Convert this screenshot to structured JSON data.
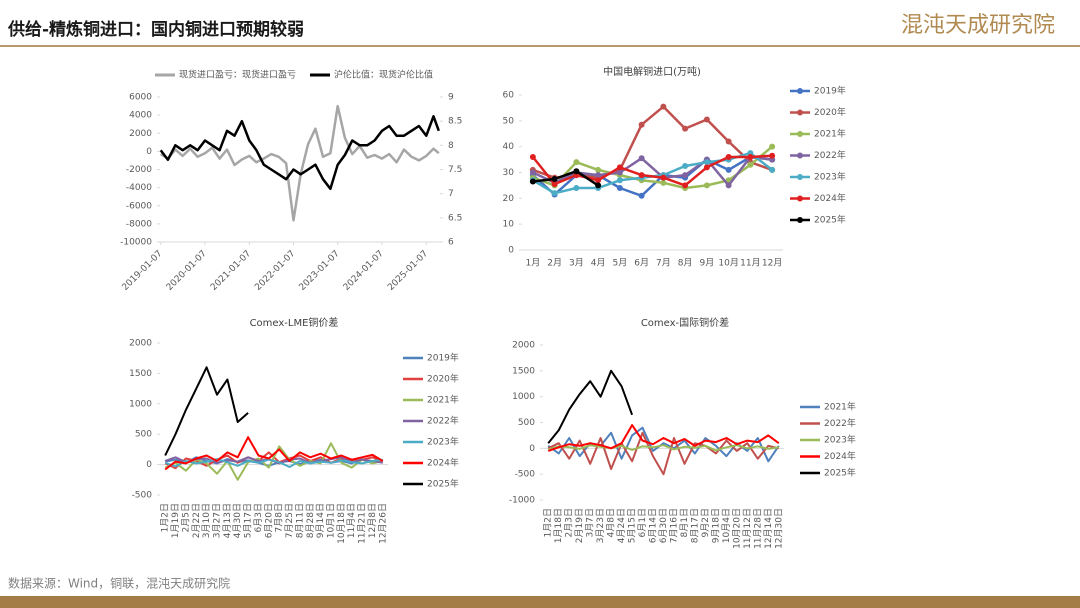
{
  "header": {
    "title": "供给-精炼铜进口：国内铜进口预期较弱",
    "logo": "混沌天成研究院"
  },
  "footer": {
    "source": "数据来源：Wind，铜联，混沌天成研究院"
  },
  "chart_data": [
    {
      "type": "line",
      "x": [
        "2019-01-07",
        "2019-03-07",
        "2019-05-07",
        "2019-07-07",
        "2019-09-07",
        "2019-11-07",
        "2020-01-07",
        "2020-03-07",
        "2020-05-07",
        "2020-07-07",
        "2020-09-07",
        "2020-11-07",
        "2021-01-07",
        "2021-03-07",
        "2021-05-07",
        "2021-07-07",
        "2021-09-07",
        "2021-11-07",
        "2022-01-07",
        "2022-03-07",
        "2022-05-07",
        "2022-07-07",
        "2022-09-07",
        "2022-11-07",
        "2023-01-07",
        "2023-03-07",
        "2023-05-07",
        "2023-07-07",
        "2023-09-07",
        "2023-11-07",
        "2024-01-07",
        "2024-03-07",
        "2024-05-07",
        "2024-07-07",
        "2024-09-07",
        "2024-11-07",
        "2025-01-07",
        "2025-03-07",
        "2025-04-20"
      ],
      "xlim": [
        "2019-01-01",
        "2025-04-30"
      ],
      "xticks": [
        "2019-01-07",
        "2020-01-07",
        "2021-01-07",
        "2022-01-07",
        "2023-01-07",
        "2024-01-07",
        "2025-01-07"
      ],
      "ylim": [
        -10000,
        6000
      ],
      "yticks": [
        6000,
        4000,
        2000,
        0,
        -2000,
        -4000,
        -6000,
        -8000,
        -10000
      ],
      "y2lim": [
        6,
        9
      ],
      "y2ticks": [
        9,
        8.5,
        8,
        7.5,
        7,
        6.5,
        6
      ],
      "series": [
        {
          "name": "现货进口盈亏：现货进口盈亏",
          "color": "#a6a6a6",
          "values": [
            -300,
            -800,
            200,
            -500,
            300,
            -600,
            -200,
            400,
            -800,
            200,
            -1500,
            -900,
            -500,
            -1200,
            -800,
            -300,
            -600,
            -1300,
            -7600,
            -2500,
            800,
            2500,
            -600,
            -200,
            5000,
            1500,
            -300,
            600,
            -700,
            -400,
            -800,
            -300,
            -1200,
            200,
            -600,
            -1000,
            -500,
            300,
            -200
          ]
        },
        {
          "name": "沪伦比值：现货沪伦比值",
          "color": "#000000",
          "axis": "y2",
          "values": [
            7.9,
            7.7,
            8.0,
            7.9,
            8.0,
            7.9,
            8.1,
            8.0,
            7.9,
            8.3,
            8.2,
            8.5,
            8.1,
            7.9,
            7.6,
            7.5,
            7.4,
            7.3,
            7.5,
            7.4,
            7.5,
            7.6,
            7.3,
            7.1,
            7.6,
            7.8,
            8.1,
            8.0,
            8.0,
            8.1,
            8.3,
            8.4,
            8.2,
            8.2,
            8.3,
            8.4,
            8.2,
            8.6,
            8.3
          ]
        }
      ]
    },
    {
      "type": "line",
      "title": "中国电解铜进口(万吨)",
      "categories": [
        "1月",
        "2月",
        "3月",
        "4月",
        "5月",
        "6月",
        "7月",
        "8月",
        "9月",
        "10月",
        "11月",
        "12月"
      ],
      "ylim": [
        0,
        60
      ],
      "yticks": [
        0,
        10,
        20,
        30,
        40,
        50,
        60
      ],
      "markers": true,
      "series": [
        {
          "name": "2019年",
          "color": "#4472c4",
          "values": [
            29,
            21.5,
            29,
            29,
            24,
            21,
            29,
            28,
            35,
            31,
            36,
            35
          ]
        },
        {
          "name": "2020年",
          "color": "#c0504d",
          "values": [
            31,
            28,
            29,
            28,
            31,
            48.5,
            55.5,
            47,
            50.5,
            42,
            34,
            31
          ]
        },
        {
          "name": "2021年",
          "color": "#9bbb59",
          "values": [
            28,
            25,
            34,
            31,
            29,
            27,
            26,
            24,
            25,
            27,
            33,
            40
          ]
        },
        {
          "name": "2022年",
          "color": "#8064a2",
          "values": [
            30,
            26,
            30,
            29,
            30,
            35.5,
            28,
            29,
            35,
            25,
            36,
            35
          ]
        },
        {
          "name": "2023年",
          "color": "#4bacc6",
          "values": [
            27,
            22,
            24,
            24,
            27,
            28,
            29,
            32.5,
            34,
            35,
            37.5,
            31
          ]
        },
        {
          "name": "2024年",
          "color": "#e02020",
          "values": [
            36,
            25.5,
            29,
            27,
            32,
            29,
            28,
            25,
            32,
            36,
            36,
            36.5
          ]
        },
        {
          "name": "2025年",
          "color": "#000000",
          "values": [
            26.5,
            27.5,
            30.5,
            25,
            null,
            null,
            null,
            null,
            null,
            null,
            null,
            null
          ]
        }
      ]
    },
    {
      "type": "line",
      "title": "Comex-LME铜价差",
      "categories": [
        "1月2日",
        "1月19日",
        "2月5日",
        "2月22日",
        "3月10日",
        "3月27日",
        "4月13日",
        "4月30日",
        "5月17日",
        "6月3日",
        "6月20日",
        "7月8日",
        "7月25日",
        "8月11日",
        "8月28日",
        "9月14日",
        "10月1日",
        "10月18日",
        "11月4日",
        "11月21日",
        "12月8日",
        "12月26日"
      ],
      "ylim": [
        -500,
        2000
      ],
      "yticks": [
        -500,
        0,
        500,
        1000,
        1500,
        2000
      ],
      "series": [
        {
          "name": "2019年",
          "color": "#4f81bd",
          "values": [
            50,
            80,
            30,
            120,
            60,
            20,
            90,
            40,
            70,
            30,
            -20,
            40,
            60,
            10,
            50,
            80,
            30,
            60,
            20,
            90,
            40,
            70
          ]
        },
        {
          "name": "2020年",
          "color": "#e04040",
          "values": [
            20,
            -60,
            100,
            60,
            -20,
            80,
            150,
            30,
            120,
            60,
            200,
            40,
            100,
            150,
            60,
            120,
            30,
            100,
            60,
            80,
            120,
            50
          ]
        },
        {
          "name": "2021年",
          "color": "#9bbb59",
          "values": [
            -50,
            30,
            -100,
            80,
            20,
            -150,
            60,
            -250,
            40,
            100,
            -50,
            300,
            80,
            -20,
            60,
            20,
            350,
            30,
            -50,
            80,
            20,
            60
          ]
        },
        {
          "name": "2022年",
          "color": "#8064a2",
          "values": [
            60,
            120,
            40,
            90,
            100,
            30,
            70,
            50,
            120,
            60,
            90,
            20,
            80,
            100,
            30,
            60,
            90,
            120,
            40,
            80,
            60,
            30
          ]
        },
        {
          "name": "2023年",
          "color": "#4bacc6",
          "values": [
            30,
            -30,
            60,
            20,
            50,
            90,
            40,
            -20,
            60,
            30,
            80,
            40,
            -40,
            60,
            20,
            50,
            30,
            70,
            40,
            20,
            60,
            80
          ]
        },
        {
          "name": "2024年",
          "color": "#ff0000",
          "values": [
            -80,
            50,
            20,
            100,
            150,
            60,
            200,
            120,
            450,
            150,
            100,
            250,
            60,
            200,
            120,
            180,
            100,
            150,
            80,
            120,
            160,
            60
          ]
        },
        {
          "name": "2025年",
          "color": "#000000",
          "values": [
            150,
            500,
            900,
            1250,
            1600,
            1150,
            1400,
            700,
            850,
            null,
            null,
            null,
            null,
            null,
            null,
            null,
            null,
            null,
            null,
            null,
            null,
            null
          ]
        }
      ]
    },
    {
      "type": "line",
      "title": "Comex-国际铜价差",
      "categories": [
        "1月2日",
        "1月18日",
        "2月3日",
        "2月19日",
        "3月7日",
        "3月23日",
        "4月8日",
        "4月24日",
        "5月15日",
        "6月1日",
        "6月14日",
        "6月30日",
        "7月16日",
        "8月1日",
        "8月17日",
        "9月2日",
        "9月18日",
        "10月4日",
        "10月20日",
        "11月12日",
        "11月28日",
        "12月14日",
        "12月30日"
      ],
      "ylim": [
        -1000,
        2000
      ],
      "yticks": [
        -1000,
        -500,
        0,
        500,
        1000,
        1500,
        2000
      ],
      "series": [
        {
          "name": "2021年",
          "color": "#4f81bd",
          "values": [
            50,
            -100,
            200,
            -150,
            100,
            50,
            300,
            -200,
            250,
            400,
            -50,
            100,
            0,
            150,
            -100,
            200,
            50,
            -150,
            100,
            -50,
            200,
            -250,
            50
          ]
        },
        {
          "name": "2022年",
          "color": "#c0504d",
          "values": [
            0,
            100,
            -200,
            150,
            -300,
            200,
            -400,
            100,
            -250,
            300,
            -150,
            -500,
            200,
            -300,
            100,
            50,
            -100,
            150,
            -50,
            100,
            -200,
            50,
            0
          ]
        },
        {
          "name": "2023年",
          "color": "#9bbb59",
          "values": [
            -20,
            40,
            20,
            -10,
            60,
            30,
            0,
            50,
            -30,
            40,
            20,
            60,
            -20,
            30,
            10,
            50,
            -40,
            20,
            60,
            0,
            40,
            -10,
            20
          ]
        },
        {
          "name": "2024年",
          "color": "#ff0000",
          "values": [
            -50,
            20,
            80,
            50,
            100,
            60,
            0,
            100,
            450,
            150,
            80,
            200,
            100,
            180,
            50,
            150,
            120,
            200,
            80,
            150,
            120,
            250,
            100
          ]
        },
        {
          "name": "2025年",
          "color": "#000000",
          "values": [
            100,
            350,
            750,
            1050,
            1300,
            1000,
            1500,
            1200,
            650,
            null,
            null,
            null,
            null,
            null,
            null,
            null,
            null,
            null,
            null,
            null,
            null,
            null,
            null
          ]
        }
      ]
    }
  ]
}
